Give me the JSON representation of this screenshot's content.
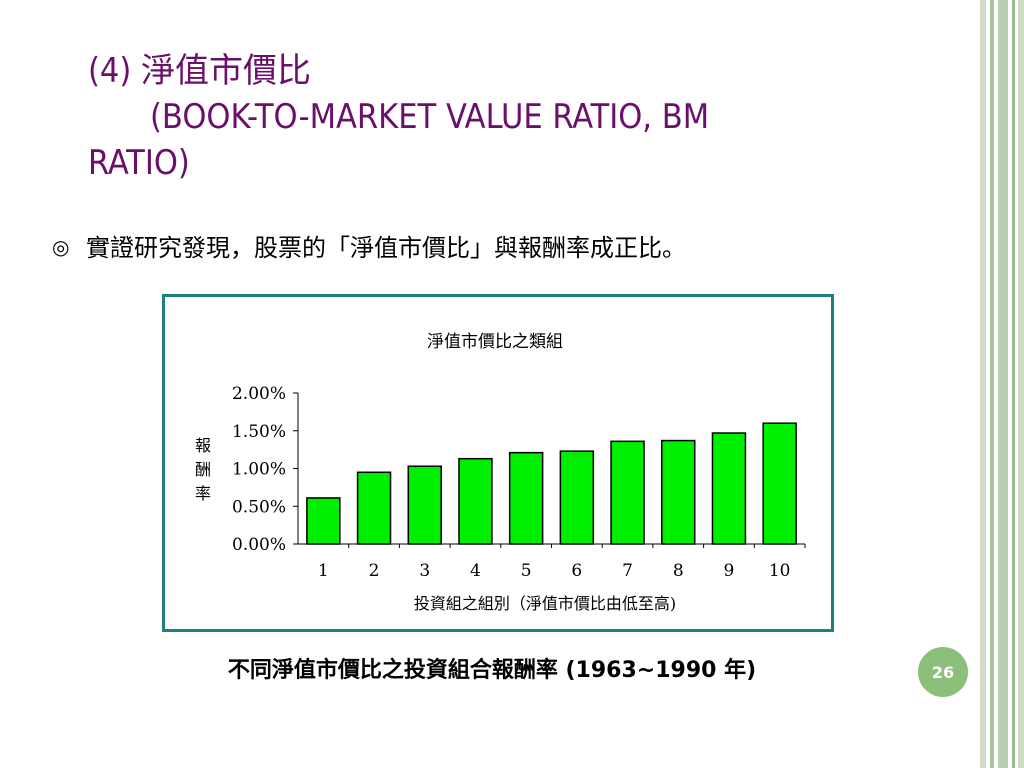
{
  "slide": {
    "title_line1": "(4) 淨值市價比",
    "title_line2": "(BOOK-TO-MARKET VALUE RATIO, BM",
    "title_line3": "RATIO)",
    "bullet_mark": "◎",
    "bullet_text": "實證研究發現，股票的「淨值市價比」與報酬率成正比。",
    "caption": "不同淨值市價比之投資組合報酬率 (1963~1990 年)",
    "page_number": "26",
    "accent_colors": {
      "title": "#6a0f6a",
      "chart_border": "#1f7f7f",
      "bar_fill": "#00ee00",
      "page_badge": "#8cbf7a"
    }
  },
  "chart_data": {
    "type": "bar",
    "title": "淨值市價比之類組",
    "xlabel": "投資組之組別（淨值市價比由低至高)",
    "ylabel": "報酬率",
    "categories": [
      "1",
      "2",
      "3",
      "4",
      "5",
      "6",
      "7",
      "8",
      "9",
      "10"
    ],
    "values": [
      0.61,
      0.95,
      1.03,
      1.13,
      1.21,
      1.23,
      1.36,
      1.37,
      1.47,
      1.6
    ],
    "ylim": [
      0,
      2.0
    ],
    "yticks": [
      {
        "value": 0.0,
        "label": "0.00%"
      },
      {
        "value": 0.5,
        "label": "0.50%"
      },
      {
        "value": 1.0,
        "label": "1.00%"
      },
      {
        "value": 1.5,
        "label": "1.50%"
      },
      {
        "value": 2.0,
        "label": "2.00%"
      }
    ],
    "grid": false,
    "legend": "none"
  }
}
